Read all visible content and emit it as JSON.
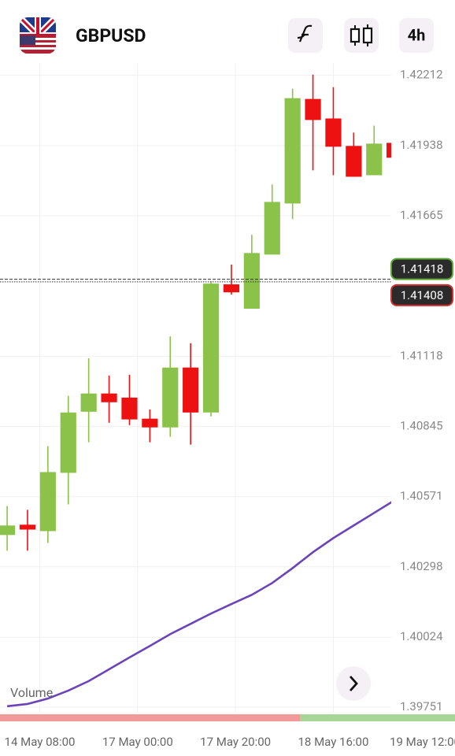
{
  "header": {
    "symbol": "GBPUSD",
    "interval": "4h"
  },
  "chart_data": {
    "type": "candlestick",
    "categories": [
      null,
      null,
      null,
      null,
      null,
      null,
      null,
      null,
      null,
      null,
      null,
      null,
      null,
      null,
      null,
      null,
      null,
      null,
      null,
      null
    ],
    "ohlc": {
      "open": [
        1.40422,
        1.40462,
        1.40437,
        1.40664,
        1.40902,
        1.40973,
        1.40957,
        1.40875,
        1.40841,
        1.41074,
        1.40899,
        1.41398,
        1.41303,
        1.41514,
        1.41713,
        1.4212,
        1.42044,
        1.41937,
        1.41823,
        1.41949
      ],
      "high": [
        1.40535,
        1.4052,
        1.40768,
        1.40964,
        1.4111,
        1.41043,
        1.41046,
        1.40911,
        1.41196,
        1.41169,
        1.4141,
        1.41475,
        1.41591,
        1.41787,
        1.4216,
        1.42215,
        1.42166,
        1.41989,
        1.42016,
        1.41949
      ],
      "low": [
        1.40361,
        1.40361,
        1.40391,
        1.40541,
        1.40783,
        1.40859,
        1.4085,
        1.40783,
        1.40804,
        1.40774,
        1.40884,
        1.41358,
        1.41303,
        1.41514,
        1.41652,
        1.41842,
        1.41823,
        1.41817,
        1.41823,
        1.41891
      ],
      "close": [
        1.40459,
        1.40443,
        1.40667,
        1.40899,
        1.40973,
        1.40939,
        1.40872,
        1.40841,
        1.41074,
        1.40899,
        1.41401,
        1.41367,
        1.4152,
        1.41719,
        1.42123,
        1.42038,
        1.41934,
        1.41817,
        1.41946,
        1.41891
      ],
      "up_color": "#8bc34a",
      "down_color": "#ee1111"
    },
    "line": {
      "color": "#6a45b8",
      "values": [
        1.39755,
        1.39764,
        1.39785,
        1.39816,
        1.39853,
        1.39899,
        1.39945,
        1.3999,
        1.40036,
        1.40076,
        1.40116,
        1.40153,
        1.40189,
        1.40235,
        1.40293,
        1.40355,
        1.4041,
        1.40459,
        1.40508,
        1.40557
      ]
    },
    "price_lines": [
      {
        "value": 1.41418,
        "color": "#5aa832"
      },
      {
        "value": 1.41408,
        "color": "#d32f2f"
      }
    ],
    "annotation": "Volume",
    "xlim": [
      -0.35,
      18.84
    ],
    "xticks": [
      {
        "value": 1.6,
        "label": "14 May 08:00"
      },
      {
        "value": 6.4,
        "label": "17 May 00:00"
      },
      {
        "value": 11.2,
        "label": "17 May 20:00"
      },
      {
        "value": 16.0,
        "label": "18 May 16:00"
      },
      {
        "value": 20.5,
        "label": "19 May 12:00"
      }
    ],
    "ylim": [
      1.3973,
      1.4226
    ],
    "yticks": [
      1.39751,
      1.40024,
      1.40298,
      1.40571,
      1.40845,
      1.41118,
      1.41665,
      1.41938,
      1.42212
    ],
    "grid": true
  }
}
